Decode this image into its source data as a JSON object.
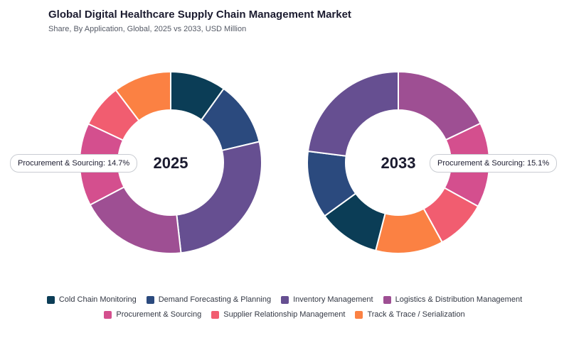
{
  "title": "Global Digital Healthcare Supply Chain Management Market",
  "subtitle": "Share, By Application, Global, 2025 vs 2033, USD Million",
  "colors": {
    "Cold Chain Monitoring": "#0b3d56",
    "Demand Forecasting & Planning": "#2b4a7e",
    "Inventory Management": "#664f91",
    "Logistics & Distribution Management": "#9e4f93",
    "Procurement & Sourcing": "#d44f8e",
    "Supplier Relationship Management": "#f15d70",
    "Track & Trace / Serialization": "#fb8143"
  },
  "callouts": {
    "left": "Procurement & Sourcing: 14.7%",
    "right": "Procurement & Sourcing: 15.1%"
  },
  "chart_data": [
    {
      "type": "pie",
      "label": "2025",
      "categories": [
        "Cold Chain Monitoring",
        "Demand Forecasting & Planning",
        "Inventory Management",
        "Logistics & Distribution Management",
        "Procurement & Sourcing",
        "Supplier Relationship Management",
        "Track & Trace / Serialization"
      ],
      "values": [
        9.9,
        11.4,
        26.9,
        19.1,
        14.7,
        7.7,
        10.3
      ]
    },
    {
      "type": "pie",
      "label": "2033",
      "categories": [
        "Logistics & Distribution Management",
        "Procurement & Sourcing",
        "Supplier Relationship Management",
        "Track & Trace / Serialization",
        "Cold Chain Monitoring",
        "Demand Forecasting & Planning",
        "Inventory Management"
      ],
      "values": [
        17.9,
        15.1,
        9.0,
        12.0,
        11.0,
        12.0,
        23.0
      ]
    }
  ],
  "legend": {
    "row1": [
      "Cold Chain Monitoring",
      "Demand Forecasting & Planning",
      "Inventory Management",
      "Logistics & Distribution Management"
    ],
    "row2": [
      "Procurement & Sourcing",
      "Supplier Relationship Management",
      "Track & Trace / Serialization"
    ]
  }
}
